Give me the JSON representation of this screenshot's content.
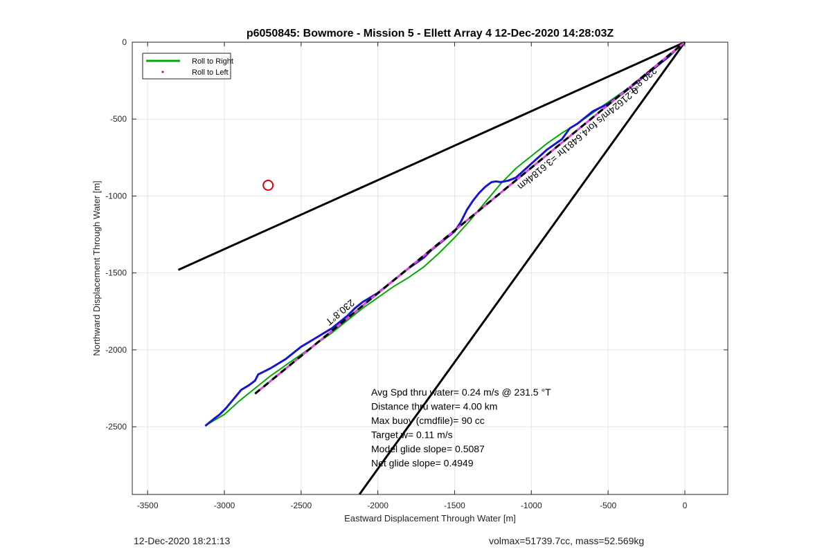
{
  "footer": {
    "left": "12-Dec-2020 18:21:13",
    "right": "volmax=51739.7cc, mass=52.569kg"
  },
  "chart_data": {
    "type": "line",
    "title": "p6050845: Bowmore - Mission 5 - Ellett Array 4 12-Dec-2020 14:28:03Z",
    "xlabel": "Eastward Displacement Through Water [m]",
    "ylabel": "Northward Displacement Through Water [m]",
    "xlim": [
      -3600,
      280
    ],
    "ylim": [
      -2940,
      0
    ],
    "xticks": [
      -3500,
      -3000,
      -2500,
      -2000,
      -1500,
      -1000,
      -500,
      0
    ],
    "xticklabels": [
      "-3500",
      "-3000",
      "-2500",
      "-2000",
      "-1500",
      "-1000",
      "-500",
      "0"
    ],
    "yticks": [
      0,
      -500,
      -1000,
      -1500,
      -2000,
      -2500
    ],
    "yticklabels": [
      "0",
      "-500",
      "-1000",
      "-1500",
      "-2000",
      "-2500"
    ],
    "grid": true,
    "legend": {
      "placement": "top-left",
      "entries": [
        {
          "label": "Roll to Right",
          "color": "#00aa00",
          "marker": "line"
        },
        {
          "label": "Roll to Left",
          "color": "#dd0000",
          "marker": "dot"
        }
      ]
    },
    "series": [
      {
        "name": "Roll to Right",
        "color": "#00aa00",
        "x": [
          -3120,
          -3000,
          -2900,
          -2800,
          -2700,
          -2600,
          -2500,
          -2400,
          -2300,
          -2200,
          -2100,
          -2000,
          -1900,
          -1800,
          -1700,
          -1600,
          -1500,
          -1400,
          -1300,
          -1200,
          -1100,
          -1000,
          -900,
          -800,
          -700,
          -600,
          -500,
          -400,
          -300,
          -200,
          -100,
          0
        ],
        "y": [
          -2490,
          -2420,
          -2330,
          -2250,
          -2170,
          -2100,
          -2030,
          -1960,
          -1890,
          -1810,
          -1730,
          -1660,
          -1590,
          -1530,
          -1460,
          -1370,
          -1270,
          -1160,
          -1040,
          -920,
          -820,
          -740,
          -660,
          -590,
          -530,
          -460,
          -390,
          -320,
          -250,
          -170,
          -80,
          0
        ]
      },
      {
        "name": "track",
        "color": "#1515cc",
        "x": [
          -3125,
          -3070,
          -3030,
          -2990,
          -2940,
          -2890,
          -2840,
          -2800,
          -2780,
          -2700,
          -2650,
          -2600,
          -2550,
          -2500,
          -2450,
          -2400,
          -2350,
          -2300,
          -2200,
          -2150,
          -2100,
          -2000,
          -1900,
          -1800,
          -1700,
          -1650,
          -1600,
          -1500,
          -1460,
          -1420,
          -1380,
          -1340,
          -1300,
          -1260,
          -1230,
          -1200,
          -1150,
          -1100,
          -1000,
          -900,
          -800,
          -750,
          -700,
          -650,
          -600,
          -500,
          -400,
          -300,
          -200,
          -100,
          -50,
          0
        ],
        "y": [
          -2495,
          -2450,
          -2420,
          -2380,
          -2320,
          -2260,
          -2230,
          -2200,
          -2160,
          -2120,
          -2090,
          -2060,
          -2020,
          -1980,
          -1950,
          -1920,
          -1890,
          -1860,
          -1780,
          -1730,
          -1690,
          -1630,
          -1550,
          -1470,
          -1400,
          -1350,
          -1310,
          -1230,
          -1170,
          -1090,
          -1030,
          -980,
          -940,
          -910,
          -905,
          -910,
          -900,
          -880,
          -790,
          -700,
          -630,
          -560,
          -530,
          -490,
          -450,
          -400,
          -330,
          -250,
          -170,
          -90,
          -40,
          0
        ]
      },
      {
        "name": "mean heading",
        "color": "#dd44dd",
        "dashColor": "#000000",
        "x": [
          -2800,
          0
        ],
        "y": [
          -2285,
          0
        ]
      },
      {
        "name": "bound-1",
        "color": "#000000",
        "x": [
          -3300,
          0
        ],
        "y": [
          -1480,
          0
        ]
      },
      {
        "name": "bound-2",
        "color": "#000000",
        "x": [
          -2120,
          0
        ],
        "y": [
          -2940,
          0
        ]
      }
    ],
    "markers": [
      {
        "name": "target-circle",
        "x": -2715,
        "y": -930,
        "color": "#dd0000"
      }
    ],
    "annotations": {
      "heading_top": {
        "text": "230.8°T",
        "x": -290,
        "y": -230,
        "angle": 140
      },
      "speed_label": {
        "text": "0.21624m/s for4.6481hr =3.6184km",
        "x": -710,
        "y": -610,
        "angle": 140
      },
      "heading_mid": {
        "text": "230.8°T",
        "x": -2260,
        "y": -1740,
        "angle": 140
      },
      "stats": [
        "Avg Spd thru water=  0.24 m/s @ 231.5 °T",
        "Distance thru water=  4.00 km",
        "Max buoy (cmdfile)= 90 cc",
        "Target w= 0.11 m/s",
        "Model glide slope= 0.5087",
        "Net glide slope= 0.4949"
      ]
    }
  }
}
